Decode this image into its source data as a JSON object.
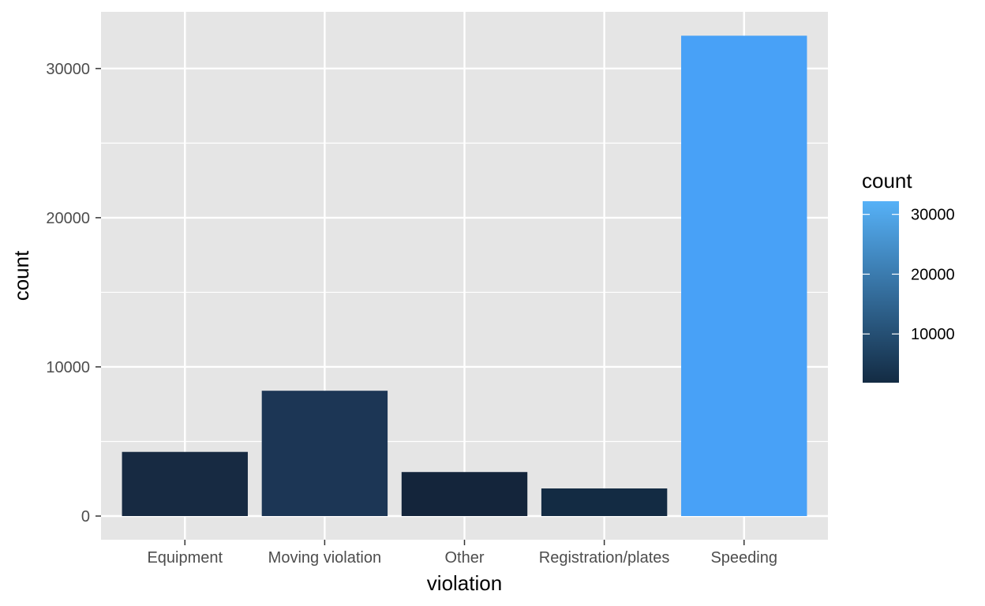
{
  "chart_data": {
    "type": "bar",
    "title": "",
    "xlabel": "violation",
    "ylabel": "count",
    "categories": [
      "Equipment",
      "Moving violation",
      "Other",
      "Registration/plates",
      "Speeding"
    ],
    "values": [
      4300,
      8400,
      2950,
      1850,
      32200
    ],
    "ylim": [
      0,
      33800
    ],
    "yticks": [
      0,
      10000,
      20000,
      30000
    ],
    "ytick_labels": [
      "0",
      "10000",
      "20000",
      "30000"
    ],
    "grid": true,
    "fill_by": "count",
    "legend": {
      "title": "count",
      "position": "right",
      "type": "colorbar",
      "range": [
        1850,
        32200
      ],
      "ticks": [
        10000,
        20000,
        30000
      ],
      "tick_labels": [
        "10000",
        "20000",
        "30000"
      ],
      "low_color": "#132B43",
      "high_color": "#56B1F7"
    },
    "colors": {
      "panel_background": "#E5E5E5",
      "grid": "#FFFFFF",
      "bar_fills": [
        "#172A42",
        "#1C3655",
        "#14253B",
        "#132B43",
        "#48A1F7"
      ]
    }
  }
}
